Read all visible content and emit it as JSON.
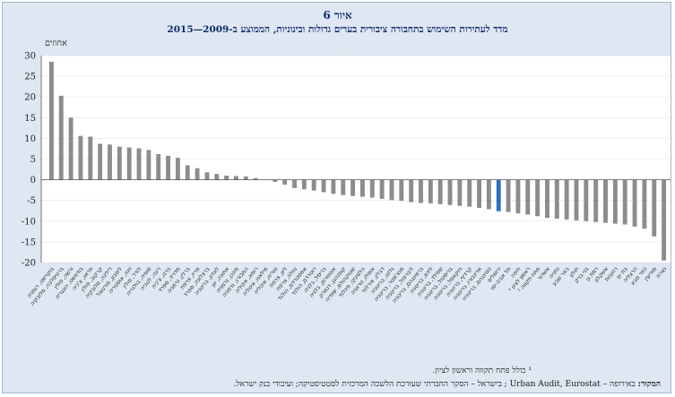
{
  "figure": {
    "label": "איור 6",
    "title": "מדד לעתירות השימוש בתחבורה ציבורית בערים גדולות ובינוניות, הממוצע ב-2009—2015",
    "footnote": "¹ כולל פתח תקווה וראשון לציון.",
    "source_label": "המקור:",
    "source_text": "באירופה – Urban Audit, Eurostat ; בישראל – הסקר החברתי שעורכת הלשכה המרכזית לסטטיסטיקה; ועיבודי בנק ישראל."
  },
  "chart_data": {
    "type": "bar",
    "ylabel": "אחוזים",
    "ylim": [
      -20,
      30
    ],
    "yticks": [
      30,
      25,
      20,
      15,
      10,
      5,
      0,
      -5,
      -10,
      -15,
      -20
    ],
    "grid": true,
    "bar_color": "#8c8c8c",
    "highlight_color": "#2f6fc4",
    "highlight_index": 46,
    "categories": [
      "בוקרשט, רומניה",
      "ברטיסלבה, סלובקיה",
      "ורשה, פולין",
      "בודפשט, הונגריה",
      "פראג, צ'כיה",
      "קרקוב, פולין",
      "ז'ילינה, סלובקיה",
      "ליסבון, פורטוגל",
      "וינה, אוסטריה",
      "לודז', פולין",
      "סופיה, בולגריה",
      "ריגה, לטביה",
      "ברנו, צ'כיה",
      "מדריד, ספרד",
      "ברלין, גרמניה",
      "פריז, צרפת",
      "ברצלונה, ספרד",
      "לונדון, בריטניה",
      "אתונה, יוון",
      "מינכן, גרמניה",
      "המבורג, גרמניה",
      "רומא, איטליה",
      "מילאנו, איטליה",
      "טורינו, איטליה",
      "ליון, צרפת",
      "טולוז, צרפת",
      "אמסטרדם, הולנד",
      "רוטרדם, הולנד",
      "בריסל, בלגיה",
      "אנטוורפן, בלגיה",
      "קופנהגן, דנמרק",
      "שטוקהולם, שוודיה",
      "הלסינקי, פינלנד",
      "אוסלו, נורווגיה",
      "דבלין, אירלנד",
      "גלזגו, בריטניה",
      "מנצ'סטר, בריטניה",
      "ליברפול, בריטניה",
      "ברמינגהם, בריטניה",
      "לידס, בריטניה",
      "שפילד, בריטניה",
      "בריסטול, בריטניה",
      "ניוקאסל, בריטניה",
      "קרדיף, בריטניה",
      "אדינבורו, בריטניה",
      "נוטינגהם, בריטניה",
      "ירושלים",
      "תל אביב-יפו",
      "חיפה",
      "ראשון לציון ¹",
      "פתח תקווה ¹",
      "אשדוד",
      "נתניה",
      "באר שבע",
      "חולון",
      "בני ברק",
      "רמת גן",
      "אשקלון",
      "רחובות",
      "בת ים",
      "הרצליה",
      "כפר סבא",
      "מודיעין",
      "נצרת"
    ],
    "values": [
      28.5,
      20.3,
      15.0,
      10.6,
      10.4,
      8.7,
      8.5,
      8.0,
      7.8,
      7.6,
      7.2,
      6.2,
      5.8,
      5.3,
      3.5,
      2.8,
      1.8,
      1.4,
      1.0,
      0.9,
      0.8,
      0.4,
      0.0,
      -0.5,
      -1.2,
      -2.0,
      -2.3,
      -2.6,
      -3.0,
      -3.4,
      -3.7,
      -3.9,
      -4.1,
      -4.3,
      -4.6,
      -4.9,
      -5.1,
      -5.4,
      -5.6,
      -5.7,
      -5.9,
      -6.1,
      -6.3,
      -6.5,
      -6.8,
      -7.1,
      -7.6,
      -7.8,
      -8.1,
      -8.4,
      -8.8,
      -9.2,
      -9.4,
      -9.6,
      -9.8,
      -10.0,
      -10.2,
      -10.4,
      -10.6,
      -10.8,
      -11.3,
      -11.8,
      -13.7,
      -19.5
    ]
  }
}
